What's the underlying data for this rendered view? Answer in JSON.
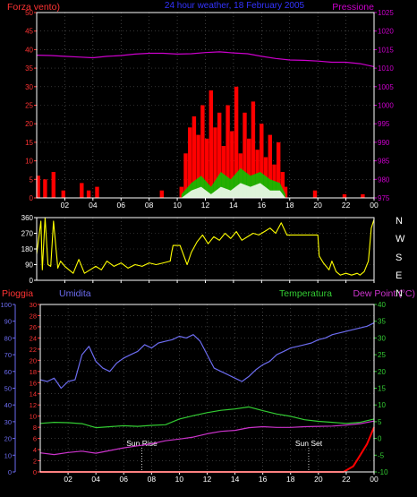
{
  "top_panel": {
    "left_label": "Forza vento)",
    "title": "24 hour weather, 18 February 2005",
    "right_label": "Pressione"
  },
  "mid_panel": {
    "compass": [
      "N",
      "W",
      "S",
      "E",
      "N"
    ]
  },
  "bottom_panel": {
    "label_rain": "Pioggia",
    "label_humidity": "Umidita",
    "label_temperature": "Temperatura",
    "label_dewpoint": "Dew Point (°C)",
    "sun_rise": "Sun Rise",
    "sun_set": "Sun Set"
  },
  "colors": {
    "wind": "#ff0000",
    "gust": "#00cc00",
    "avg": "#ffffff",
    "pressure": "#cc00cc",
    "direction": "#ffff00",
    "humidity": "#6c6cf0",
    "temperature": "#33cc33",
    "dewpoint": "#cc33cc",
    "rain": "#ff0000",
    "axis_left_top": "#ff3333",
    "axis_right_top": "#cc00cc",
    "axis_mid": "#ffffff",
    "axis_rain": "#ff3333",
    "axis_humidity": "#6c6cf0",
    "axis_temp": "#33cc33"
  },
  "chart_data": [
    {
      "type": "line",
      "x_ticks": [
        "02",
        "04",
        "06",
        "08",
        "10",
        "12",
        "14",
        "16",
        "18",
        "20",
        "22",
        "00"
      ],
      "x_range": [
        0,
        24
      ],
      "y_left": {
        "label": "Forza vento)",
        "range": [
          0,
          50
        ],
        "ticks": [
          0,
          5,
          10,
          15,
          20,
          25,
          30,
          35,
          40,
          45,
          50
        ]
      },
      "y_right": {
        "label": "Pressione",
        "range": [
          975,
          1025
        ],
        "ticks": [
          975,
          980,
          985,
          990,
          995,
          1000,
          1005,
          1010,
          1015,
          1020,
          1025
        ]
      },
      "series": [
        {
          "name": "Pressione",
          "axis": "right",
          "x": [
            0,
            1,
            2,
            3,
            4,
            5,
            6,
            7,
            8,
            9,
            10,
            11,
            12,
            13,
            14,
            15,
            16,
            17,
            18,
            19,
            20,
            21,
            22,
            23,
            24
          ],
          "y": [
            1013.5,
            1013.4,
            1013.2,
            1013.0,
            1012.8,
            1013.2,
            1013.4,
            1013.8,
            1014.0,
            1014.0,
            1013.8,
            1013.9,
            1014.2,
            1014.4,
            1014.1,
            1013.9,
            1013.2,
            1012.6,
            1012.2,
            1012.1,
            1011.9,
            1011.6,
            1011.6,
            1011.2,
            1010.4
          ]
        },
        {
          "name": "wind_speed",
          "axis": "left",
          "x": [
            0.1,
            0.6,
            1.2,
            1.9,
            3.2,
            3.7,
            4.3,
            8.9,
            10.3,
            10.6,
            10.9,
            11.2,
            11.5,
            11.8,
            12.1,
            12.4,
            12.7,
            13.0,
            13.3,
            13.6,
            13.9,
            14.2,
            14.5,
            14.8,
            15.1,
            15.4,
            15.7,
            16.0,
            16.3,
            16.6,
            16.9,
            17.2,
            17.5,
            17.7,
            19.8,
            21.9,
            23.2
          ],
          "y": [
            6,
            5,
            7,
            2,
            4,
            2,
            3,
            2,
            3,
            12,
            19,
            22,
            17,
            25,
            16,
            29,
            19,
            23,
            14,
            25,
            18,
            30,
            12,
            23,
            16,
            26,
            13,
            20,
            11,
            17,
            9,
            15,
            7,
            3,
            2,
            1,
            1
          ]
        },
        {
          "name": "gust",
          "axis": "left",
          "x": [
            10.3,
            11.0,
            11.7,
            12.4,
            13.1,
            13.8,
            14.5,
            15.2,
            15.9,
            16.6,
            17.3,
            17.7
          ],
          "y": [
            1,
            4,
            6,
            3,
            7,
            5,
            8,
            6,
            7,
            5,
            4,
            1
          ]
        },
        {
          "name": "average",
          "axis": "left",
          "x": [
            10.3,
            11.0,
            11.7,
            12.4,
            13.1,
            13.8,
            14.5,
            15.2,
            15.9,
            16.6,
            17.3,
            17.7
          ],
          "y": [
            0,
            2,
            3,
            1,
            3,
            2,
            4,
            3,
            4,
            2,
            2,
            0
          ]
        }
      ]
    },
    {
      "type": "line",
      "x_ticks": [
        "02",
        "04",
        "06",
        "08",
        "10",
        "12",
        "14",
        "16",
        "18",
        "20",
        "22",
        "00"
      ],
      "x_range": [
        0,
        24
      ],
      "y_left": {
        "range": [
          0,
          360
        ],
        "ticks": [
          0,
          90,
          180,
          270,
          360
        ]
      },
      "series": [
        {
          "name": "wind_direction",
          "x": [
            0,
            0.3,
            0.4,
            0.6,
            0.8,
            1.0,
            1.2,
            1.5,
            1.7,
            2.0,
            2.3,
            2.6,
            3.0,
            3.4,
            3.8,
            4.2,
            4.6,
            5.0,
            5.5,
            6.0,
            6.5,
            7.0,
            7.5,
            8.0,
            8.5,
            9.0,
            9.5,
            9.6,
            9.7,
            10.2,
            10.7,
            11.0,
            11.4,
            11.8,
            12.2,
            12.6,
            13.0,
            13.4,
            13.8,
            14.2,
            14.6,
            15.0,
            15.4,
            15.8,
            16.2,
            16.6,
            17.0,
            17.4,
            17.8,
            18.0,
            19.5,
            20.0,
            20.1,
            20.4,
            20.8,
            21.0,
            21.3,
            21.6,
            22.0,
            22.4,
            22.8,
            23.0,
            23.3,
            23.6,
            23.8,
            24.0
          ],
          "y": [
            150,
            340,
            60,
            360,
            90,
            80,
            340,
            70,
            110,
            80,
            60,
            40,
            120,
            40,
            60,
            80,
            60,
            110,
            80,
            100,
            70,
            90,
            80,
            100,
            90,
            100,
            110,
            160,
            200,
            200,
            90,
            160,
            220,
            260,
            210,
            250,
            230,
            270,
            240,
            280,
            230,
            250,
            270,
            260,
            280,
            300,
            270,
            330,
            260,
            260,
            260,
            260,
            140,
            100,
            60,
            110,
            50,
            30,
            40,
            30,
            40,
            30,
            50,
            110,
            300,
            350
          ]
        }
      ]
    },
    {
      "type": "line",
      "x_ticks": [
        "02",
        "04",
        "06",
        "08",
        "10",
        "12",
        "14",
        "16",
        "18",
        "20",
        "22",
        "00"
      ],
      "x_range": [
        0,
        24
      ],
      "y_rain": {
        "label": "Pioggia",
        "range": [
          0,
          30
        ],
        "ticks": [
          0,
          2,
          4,
          6,
          8,
          10,
          12,
          14,
          16,
          18,
          20,
          22,
          24,
          26,
          28,
          30
        ]
      },
      "y_humidity": {
        "label": "Umidita",
        "range": [
          0,
          100
        ],
        "ticks": [
          0,
          10,
          20,
          30,
          40,
          50,
          60,
          70,
          80,
          90,
          100
        ]
      },
      "y_temp": {
        "label": "Temperatura",
        "range": [
          -10,
          40
        ],
        "ticks": [
          -10,
          -5,
          0,
          5,
          10,
          15,
          20,
          25,
          30,
          35,
          40
        ]
      },
      "annotations": [
        {
          "text": "Sun Rise",
          "x": 7.3
        },
        {
          "text": "Sun Set",
          "x": 19.3
        }
      ],
      "series": [
        {
          "name": "Umidita",
          "axis": "humidity",
          "x": [
            0,
            0.5,
            1.0,
            1.5,
            2.0,
            2.5,
            3.0,
            3.5,
            4.0,
            4.5,
            5.0,
            5.5,
            6.0,
            6.5,
            7.0,
            7.5,
            8.0,
            8.5,
            9.0,
            9.5,
            10.0,
            10.5,
            11.0,
            11.5,
            12.0,
            12.5,
            13.0,
            13.5,
            14.0,
            14.5,
            15.0,
            15.5,
            16.0,
            16.5,
            17.0,
            17.5,
            18.0,
            18.5,
            19.0,
            19.5,
            20.0,
            20.5,
            21.0,
            21.5,
            22.0,
            22.5,
            23.0,
            23.5,
            24.0
          ],
          "y": [
            55,
            54,
            56,
            50,
            54,
            55,
            70,
            75,
            66,
            62,
            60,
            65,
            68,
            70,
            72,
            76,
            74,
            77,
            78,
            79,
            81,
            80,
            82,
            78,
            70,
            62,
            60,
            58,
            56,
            54,
            57,
            61,
            64,
            66,
            70,
            72,
            74,
            75,
            76,
            77,
            79,
            80,
            82,
            83,
            84,
            85,
            86,
            87,
            89
          ]
        },
        {
          "name": "Temperatura",
          "axis": "temp",
          "x": [
            0,
            1,
            2,
            3,
            4,
            5,
            6,
            7,
            8,
            9,
            10,
            11,
            12,
            13,
            14,
            15,
            16,
            17,
            18,
            19,
            20,
            21,
            22,
            23,
            24
          ],
          "y": [
            4.5,
            4.8,
            4.7,
            4.4,
            3.2,
            3.5,
            3.8,
            3.6,
            3.9,
            4.1,
            5.8,
            6.8,
            7.7,
            8.4,
            8.8,
            9.4,
            8.3,
            7.3,
            6.6,
            5.6,
            5.1,
            4.8,
            4.5,
            4.8,
            5.8
          ]
        },
        {
          "name": "Dew Point (°C)",
          "axis": "temp",
          "x": [
            0,
            1,
            2,
            3,
            4,
            5,
            6,
            7,
            8,
            9,
            10,
            11,
            12,
            13,
            14,
            15,
            16,
            17,
            18,
            19,
            20,
            21,
            22,
            23,
            24
          ],
          "y": [
            -4.3,
            -4.8,
            -4.2,
            -3.8,
            -4.4,
            -3.6,
            -2.8,
            -2.2,
            -1.6,
            -0.7,
            -0.2,
            0.4,
            1.4,
            2.1,
            2.4,
            3.2,
            3.5,
            3.3,
            3.3,
            3.5,
            3.6,
            3.7,
            4.0,
            4.4,
            5.2
          ]
        },
        {
          "name": "Pioggia",
          "axis": "rain",
          "x": [
            0,
            21.8,
            22.5,
            23.0,
            23.5,
            24.0
          ],
          "y": [
            0,
            0,
            1,
            3,
            5,
            8
          ]
        }
      ]
    }
  ]
}
